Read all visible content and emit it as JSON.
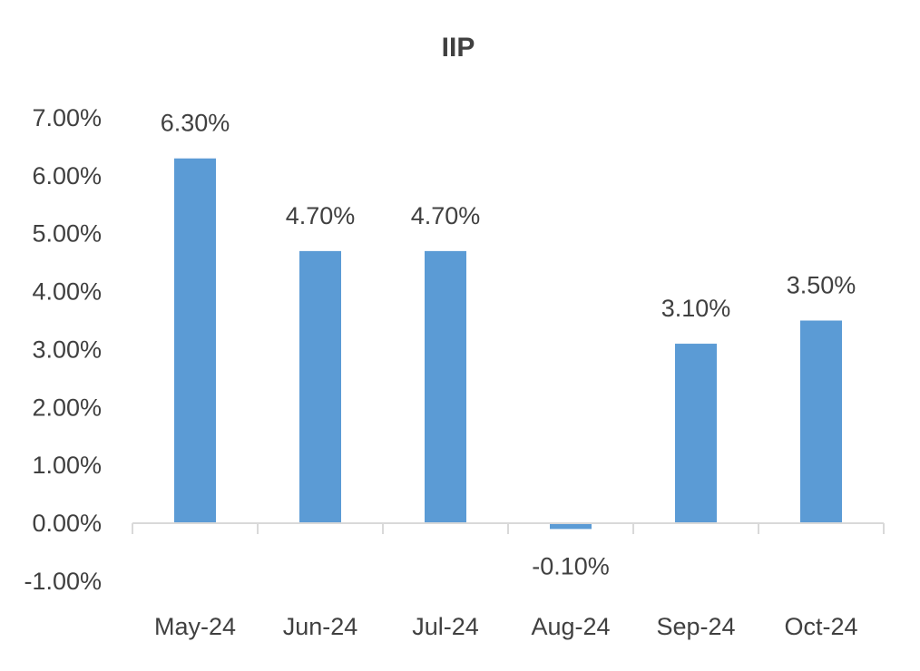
{
  "chart_data": {
    "type": "bar",
    "title": "IIP",
    "categories": [
      "May-24",
      "Jun-24",
      "Jul-24",
      "Aug-24",
      "Sep-24",
      "Oct-24"
    ],
    "series": [
      {
        "values": [
          6.3,
          4.7,
          4.7,
          -0.1,
          3.1,
          3.5
        ],
        "data_labels": [
          "6.30%",
          "4.70%",
          "4.70%",
          "-0.10%",
          "3.10%",
          "3.50%"
        ],
        "color": "#5b9bd5"
      }
    ],
    "xlabel": "",
    "ylabel": "",
    "ylim": [
      -1,
      7
    ],
    "yticks": [
      7,
      6,
      5,
      4,
      3,
      2,
      1,
      0,
      -1
    ],
    "ytick_labels": [
      "7.00%",
      "6.00%",
      "5.00%",
      "4.00%",
      "3.00%",
      "2.00%",
      "1.00%",
      "0.00%",
      "-1.00%"
    ],
    "grid": false,
    "legend": "none"
  }
}
